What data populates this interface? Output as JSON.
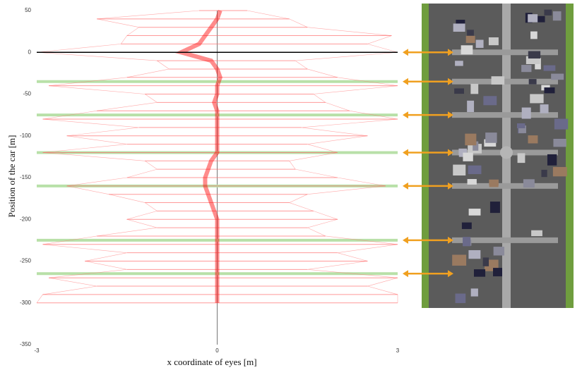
{
  "chart_data": {
    "type": "line",
    "x_label": "x coordinate of eyes [m]",
    "y_label": "Position of the car [m]",
    "x": [
      50,
      40,
      30,
      20,
      10,
      0,
      -10,
      -20,
      -30,
      -40,
      -50,
      -60,
      -70,
      -80,
      -90,
      -100,
      -110,
      -120,
      -130,
      -140,
      -150,
      -160,
      -170,
      -180,
      -190,
      -200,
      -210,
      -220,
      -230,
      -240,
      -250,
      -260,
      -270,
      -280,
      -290,
      -300
    ],
    "series": [
      {
        "color": "#ff0000",
        "values": [
          0.05,
          0,
          -0.1,
          -0.2,
          -0.3,
          -0.6,
          -0.1,
          0,
          0.05,
          0,
          0,
          -0.05,
          0,
          0,
          0,
          0,
          0,
          0,
          -0.1,
          -0.15,
          -0.2,
          -0.2,
          -0.15,
          -0.1,
          -0.05,
          0,
          0,
          0,
          0,
          0,
          0,
          0,
          0,
          0,
          0,
          0
        ]
      },
      {
        "color": "#ff6f6f",
        "values": [
          -0.3,
          -2.0,
          -1.3,
          -1.5,
          -1.6,
          -3.0,
          -1.0,
          -0.8,
          -1.5,
          -2.8,
          -1.2,
          -1.0,
          -2.0,
          -2.9,
          -1.3,
          -2.5,
          -1.5,
          -2.9,
          -1.2,
          -1.0,
          -1.5,
          -2.5,
          -1.8,
          -1.2,
          -1.0,
          -1.5,
          -1.0,
          -2.0,
          -2.9,
          -1.5,
          -2.2,
          -1.5,
          -2.8,
          -2.0,
          -2.9,
          -3.0
        ]
      },
      {
        "color": "#ff6f6f",
        "values": [
          0.5,
          1.2,
          1.5,
          2.9,
          2.5,
          3.0,
          1.3,
          1.5,
          2.0,
          3.0,
          1.6,
          1.8,
          2.2,
          3.0,
          1.4,
          2.5,
          1.5,
          2.0,
          1.2,
          1.3,
          2.0,
          2.8,
          1.5,
          1.2,
          1.6,
          2.0,
          1.5,
          1.8,
          3.0,
          2.0,
          2.5,
          1.5,
          3.0,
          2.5,
          3.0,
          3.0
        ]
      }
    ],
    "xlim": [
      -3,
      3
    ],
    "xticks": [
      -3,
      0,
      3
    ],
    "ylim": [
      -350,
      50
    ],
    "yticks": [
      50,
      0,
      -50,
      -100,
      -150,
      -200,
      -250,
      -300,
      -350
    ],
    "zero_line_color": "#000000",
    "intersections": [
      -35,
      -75,
      -120,
      -160,
      -225,
      -265
    ],
    "intersection_color": "#b8e0a8",
    "arrow_color": "#f0a020"
  }
}
